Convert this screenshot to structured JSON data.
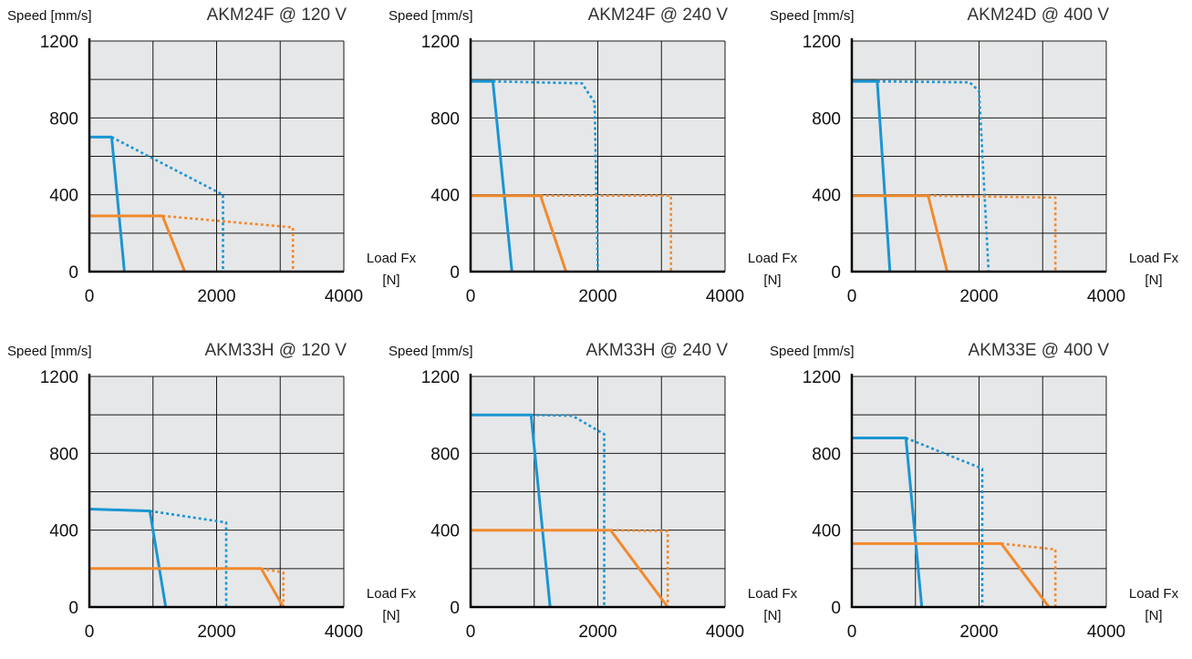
{
  "chart_data": [
    {
      "type": "line",
      "title": "AKM24F @ 120 V",
      "ylabel": "Speed [mm/s]",
      "xlabel": "Load Fx",
      "xunit": "[N]",
      "xlim": [
        0,
        4000
      ],
      "ylim": [
        0,
        1200
      ],
      "xticks": [
        0,
        2000,
        4000
      ],
      "yticks": [
        0,
        400,
        800,
        1200
      ],
      "grid": true,
      "background": "#e6e7e8",
      "series": [
        {
          "color": "#1b95d2",
          "style": "solid",
          "points": [
            [
              0,
              700
            ],
            [
              350,
              700
            ],
            [
              550,
              0
            ]
          ]
        },
        {
          "color": "#1b95d2",
          "style": "dotted",
          "points": [
            [
              350,
              700
            ],
            [
              2100,
              400
            ],
            [
              2100,
              0
            ]
          ]
        },
        {
          "color": "#f18a2e",
          "style": "solid",
          "points": [
            [
              0,
              290
            ],
            [
              1150,
              290
            ],
            [
              1500,
              0
            ]
          ]
        },
        {
          "color": "#f18a2e",
          "style": "dotted",
          "points": [
            [
              1150,
              290
            ],
            [
              3200,
              230
            ],
            [
              3200,
              0
            ]
          ]
        }
      ]
    },
    {
      "type": "line",
      "title": "AKM24F @  240 V",
      "ylabel": "Speed [mm/s]",
      "xlabel": "Load Fx",
      "xunit": "[N]",
      "xlim": [
        0,
        4000
      ],
      "ylim": [
        0,
        1200
      ],
      "xticks": [
        0,
        2000,
        4000
      ],
      "yticks": [
        0,
        400,
        800,
        1200
      ],
      "grid": true,
      "background": "#e6e7e8",
      "series": [
        {
          "color": "#1b95d2",
          "style": "solid",
          "points": [
            [
              0,
              990
            ],
            [
              350,
              990
            ],
            [
              650,
              0
            ]
          ]
        },
        {
          "color": "#1b95d2",
          "style": "dotted",
          "points": [
            [
              350,
              990
            ],
            [
              1750,
              980
            ],
            [
              1950,
              880
            ],
            [
              2000,
              0
            ]
          ]
        },
        {
          "color": "#f18a2e",
          "style": "solid",
          "points": [
            [
              0,
              395
            ],
            [
              1100,
              395
            ],
            [
              1500,
              0
            ]
          ]
        },
        {
          "color": "#f18a2e",
          "style": "dotted",
          "points": [
            [
              1100,
              395
            ],
            [
              3150,
              395
            ],
            [
              3150,
              0
            ]
          ]
        }
      ]
    },
    {
      "type": "line",
      "title": "AKM24D @ 400 V",
      "ylabel": "Speed [mm/s]",
      "xlabel": "Load Fx",
      "xunit": "[N]",
      "xlim": [
        0,
        4000
      ],
      "ylim": [
        0,
        1200
      ],
      "xticks": [
        0,
        2000,
        4000
      ],
      "yticks": [
        0,
        400,
        800,
        1200
      ],
      "grid": true,
      "background": "#e6e7e8",
      "series": [
        {
          "color": "#1b95d2",
          "style": "solid",
          "points": [
            [
              0,
              990
            ],
            [
              400,
              990
            ],
            [
              600,
              0
            ]
          ]
        },
        {
          "color": "#1b95d2",
          "style": "dotted",
          "points": [
            [
              400,
              990
            ],
            [
              1850,
              985
            ],
            [
              2000,
              940
            ],
            [
              2150,
              0
            ]
          ]
        },
        {
          "color": "#f18a2e",
          "style": "solid",
          "points": [
            [
              0,
              395
            ],
            [
              1200,
              395
            ],
            [
              1500,
              0
            ]
          ]
        },
        {
          "color": "#f18a2e",
          "style": "dotted",
          "points": [
            [
              1200,
              395
            ],
            [
              3200,
              385
            ],
            [
              3200,
              0
            ]
          ]
        }
      ]
    },
    {
      "type": "line",
      "title": "AKM33H @ 120 V",
      "ylabel": "Speed [mm/s]",
      "xlabel": "Load Fx",
      "xunit": "[N]",
      "xlim": [
        0,
        4000
      ],
      "ylim": [
        0,
        1200
      ],
      "xticks": [
        0,
        2000,
        4000
      ],
      "yticks": [
        0,
        400,
        800,
        1200
      ],
      "grid": true,
      "background": "#e6e7e8",
      "series": [
        {
          "color": "#1b95d2",
          "style": "solid",
          "points": [
            [
              0,
              510
            ],
            [
              950,
              500
            ],
            [
              1200,
              0
            ]
          ]
        },
        {
          "color": "#1b95d2",
          "style": "dotted",
          "points": [
            [
              950,
              500
            ],
            [
              2150,
              440
            ],
            [
              2150,
              0
            ]
          ]
        },
        {
          "color": "#f18a2e",
          "style": "solid",
          "points": [
            [
              0,
              200
            ],
            [
              2700,
              200
            ],
            [
              3050,
              0
            ]
          ]
        },
        {
          "color": "#f18a2e",
          "style": "dotted",
          "points": [
            [
              2700,
              200
            ],
            [
              3050,
              180
            ],
            [
              3050,
              0
            ]
          ]
        }
      ]
    },
    {
      "type": "line",
      "title": "AKM33H @ 240 V",
      "ylabel": "Speed [mm/s]",
      "xlabel": "Load Fx",
      "xunit": "[N]",
      "xlim": [
        0,
        4000
      ],
      "ylim": [
        0,
        1200
      ],
      "xticks": [
        0,
        2000,
        4000
      ],
      "yticks": [
        0,
        400,
        800,
        1200
      ],
      "grid": true,
      "background": "#e6e7e8",
      "series": [
        {
          "color": "#1b95d2",
          "style": "solid",
          "points": [
            [
              0,
              1000
            ],
            [
              950,
              1000
            ],
            [
              1250,
              0
            ]
          ]
        },
        {
          "color": "#1b95d2",
          "style": "dotted",
          "points": [
            [
              950,
              1000
            ],
            [
              1600,
              995
            ],
            [
              2100,
              900
            ],
            [
              2100,
              0
            ]
          ]
        },
        {
          "color": "#f18a2e",
          "style": "solid",
          "points": [
            [
              0,
              400
            ],
            [
              2200,
              400
            ],
            [
              3100,
              0
            ]
          ]
        },
        {
          "color": "#f18a2e",
          "style": "dotted",
          "points": [
            [
              2200,
              400
            ],
            [
              3100,
              395
            ],
            [
              3100,
              0
            ]
          ]
        }
      ]
    },
    {
      "type": "line",
      "title": "AKM33E @ 400 V",
      "ylabel": "Speed [mm/s]",
      "xlabel": "Load Fx",
      "xunit": "[N]",
      "xlim": [
        0,
        4000
      ],
      "ylim": [
        0,
        1200
      ],
      "xticks": [
        0,
        2000,
        4000
      ],
      "yticks": [
        0,
        400,
        800,
        1200
      ],
      "grid": true,
      "background": "#e6e7e8",
      "series": [
        {
          "color": "#1b95d2",
          "style": "solid",
          "points": [
            [
              0,
              880
            ],
            [
              850,
              880
            ],
            [
              1100,
              0
            ]
          ]
        },
        {
          "color": "#1b95d2",
          "style": "dotted",
          "points": [
            [
              850,
              880
            ],
            [
              2050,
              720
            ],
            [
              2050,
              0
            ]
          ]
        },
        {
          "color": "#f18a2e",
          "style": "solid",
          "points": [
            [
              0,
              330
            ],
            [
              2350,
              330
            ],
            [
              3100,
              0
            ]
          ]
        },
        {
          "color": "#f18a2e",
          "style": "dotted",
          "points": [
            [
              2350,
              330
            ],
            [
              3200,
              300
            ],
            [
              3200,
              0
            ]
          ]
        }
      ]
    }
  ]
}
